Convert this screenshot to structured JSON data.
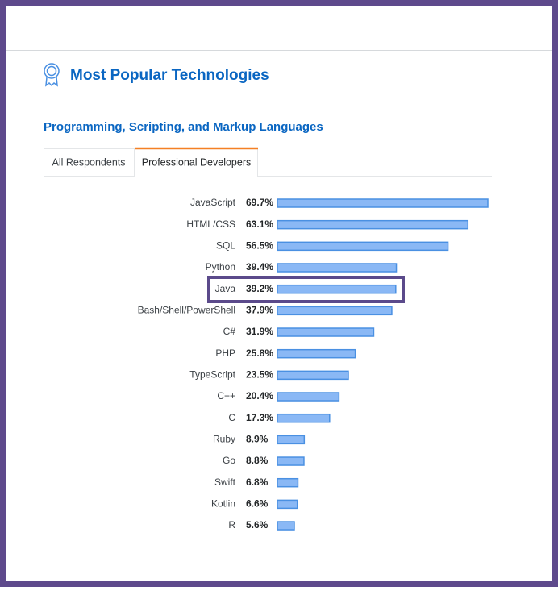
{
  "header": {
    "title": "Most Popular Technologies"
  },
  "tabs": [
    "All Respondents",
    "Professional Developers"
  ],
  "chart_data": {
    "type": "bar",
    "orientation": "horizontal",
    "subtitle": "Programming, Scripting, and Markup Languages",
    "categories": [
      "JavaScript",
      "HTML/CSS",
      "SQL",
      "Python",
      "Java",
      "Bash/Shell/PowerShell",
      "C#",
      "PHP",
      "TypeScript",
      "C++",
      "C",
      "Ruby",
      "Go",
      "Swift",
      "Kotlin",
      "R"
    ],
    "values": [
      69.7,
      63.1,
      56.5,
      39.4,
      39.2,
      37.9,
      31.9,
      25.8,
      23.5,
      20.4,
      17.3,
      8.9,
      8.8,
      6.8,
      6.6,
      5.6
    ],
    "value_labels": [
      "69.7%",
      "63.1%",
      "56.5%",
      "39.4%",
      "39.2%",
      "37.9%",
      "31.9%",
      "25.8%",
      "23.5%",
      "20.4%",
      "17.3%",
      "8.9%",
      "8.8%",
      "6.8%",
      "6.6%",
      "5.6%"
    ],
    "color": "#8ab8f5"
  }
}
